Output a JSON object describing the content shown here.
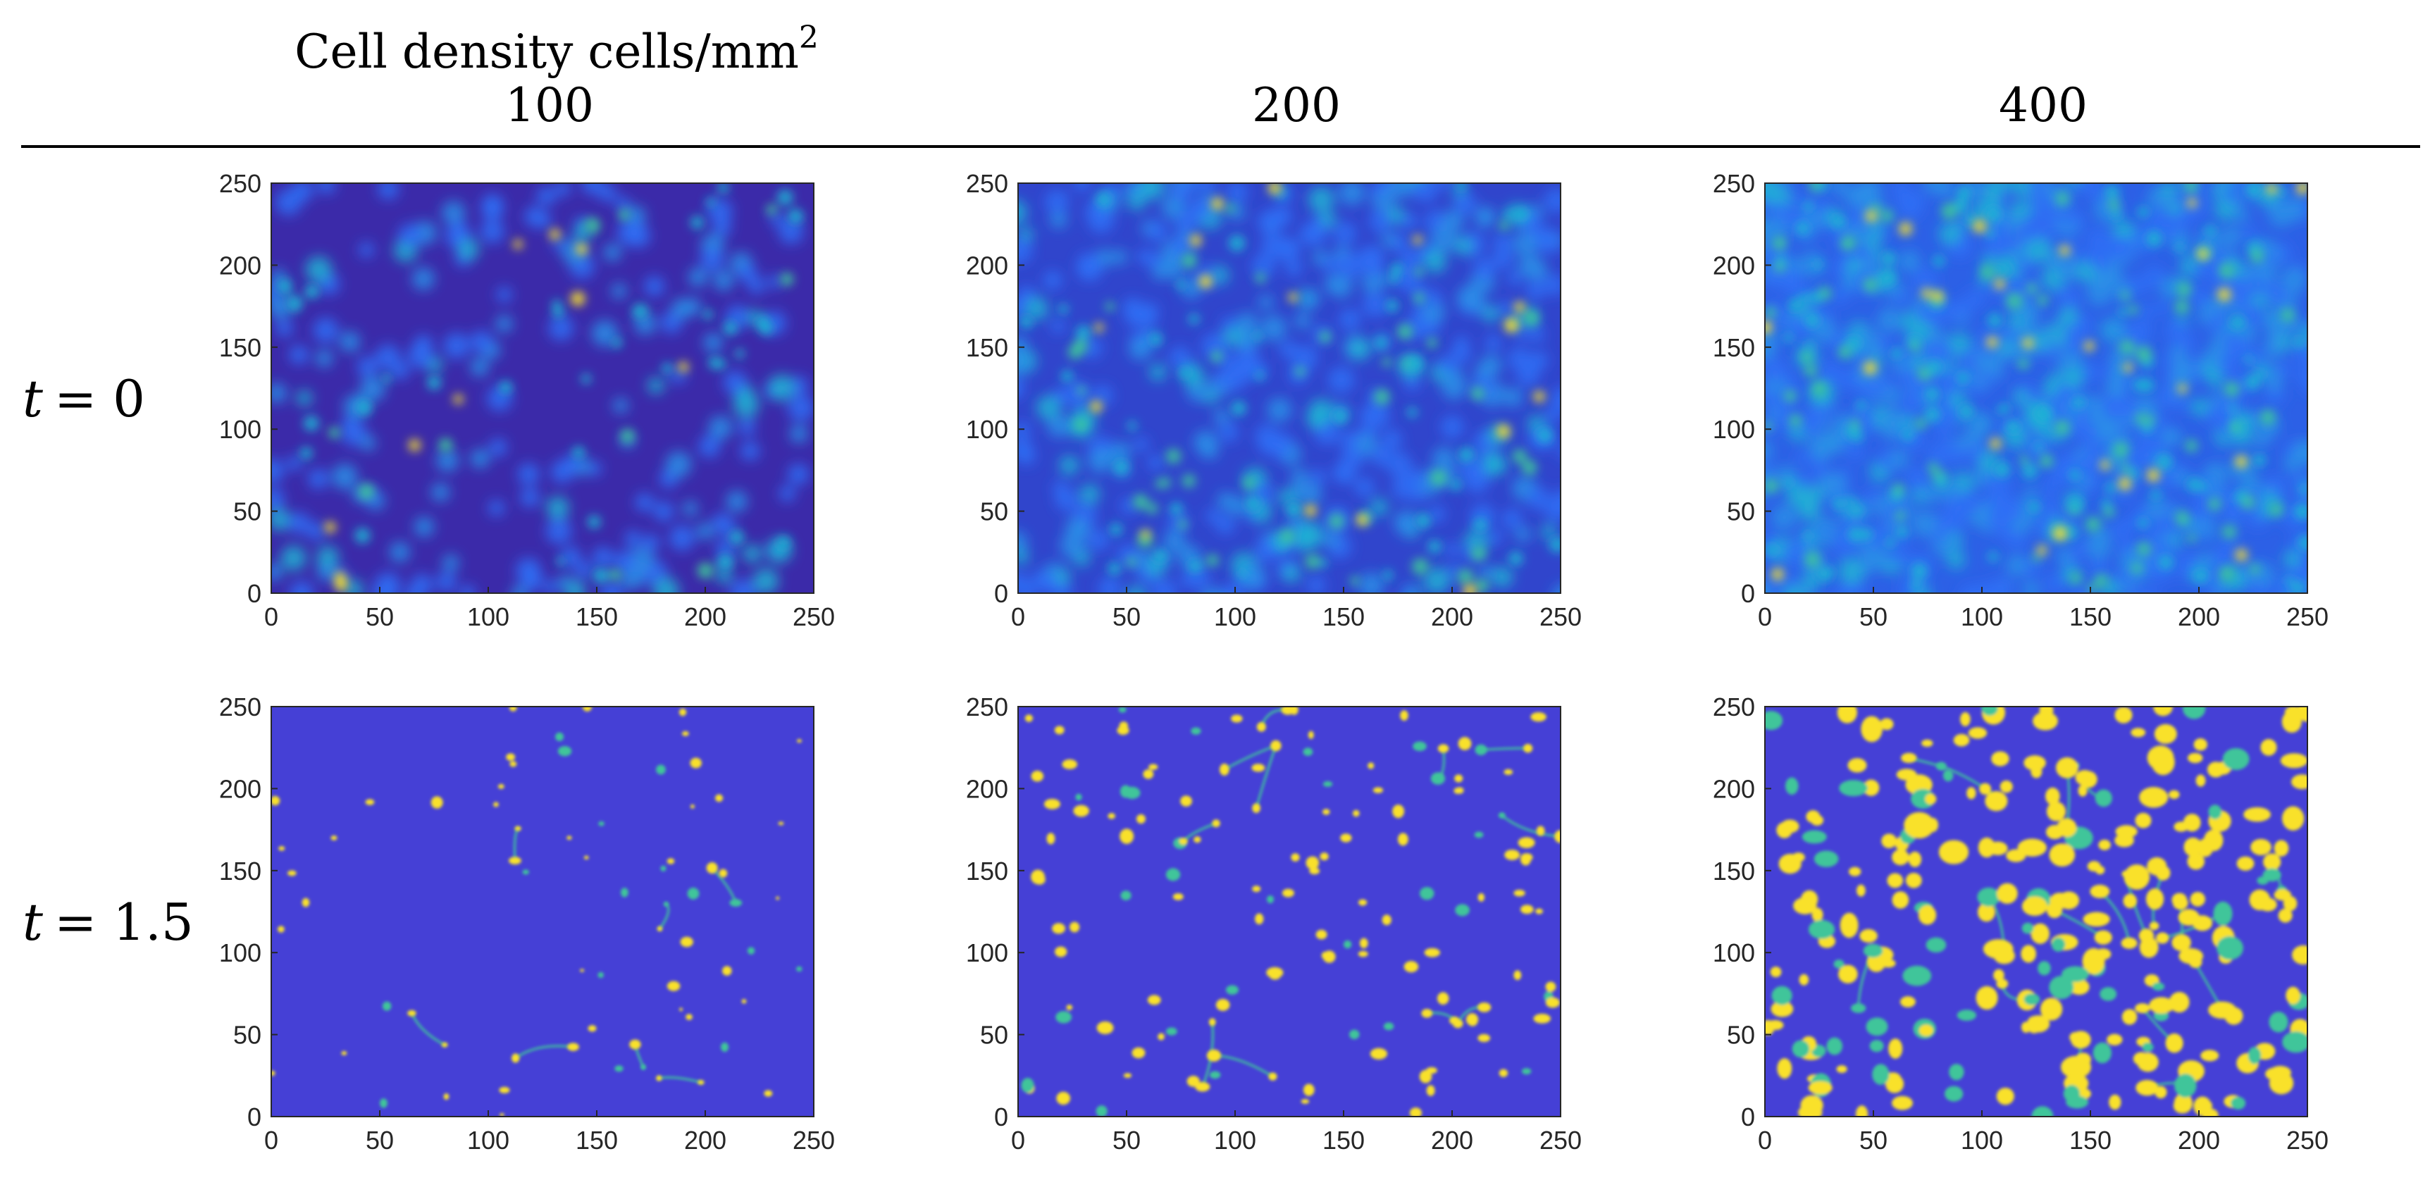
{
  "header": {
    "title": "Cell density cells/mm",
    "title_superscript": "2",
    "columns": [
      "100",
      "200",
      "400"
    ]
  },
  "rows": [
    {
      "label_var": "t",
      "label_eq": "= 0"
    },
    {
      "label_var": "t",
      "label_eq": "= 1.5"
    }
  ],
  "colors": {
    "background_low": "#3e26a8",
    "mid_blue": "#2f6ef6",
    "cyan": "#1fb3d4",
    "green": "#3fc59a",
    "yellow": "#f9e12c",
    "axis": "#262626",
    "rule": "#000000"
  },
  "chart_data": [
    {
      "type": "heatmap",
      "row": "t = 0",
      "column": "100",
      "xlim": [
        0,
        250
      ],
      "ylim": [
        0,
        250
      ],
      "x_ticks": [
        "0",
        "50",
        "100",
        "150",
        "200",
        "250"
      ],
      "y_ticks": [
        "0",
        "50",
        "100",
        "150",
        "200",
        "250"
      ],
      "colormap": "parula"
    },
    {
      "type": "heatmap",
      "row": "t = 0",
      "column": "200",
      "xlim": [
        0,
        250
      ],
      "ylim": [
        0,
        250
      ],
      "x_ticks": [
        "0",
        "50",
        "100",
        "150",
        "200",
        "250"
      ],
      "y_ticks": [
        "0",
        "50",
        "100",
        "150",
        "200",
        "250"
      ],
      "colormap": "parula"
    },
    {
      "type": "heatmap",
      "row": "t = 0",
      "column": "400",
      "xlim": [
        0,
        250
      ],
      "ylim": [
        0,
        250
      ],
      "x_ticks": [
        "0",
        "50",
        "100",
        "150",
        "200",
        "250"
      ],
      "y_ticks": [
        "0",
        "50",
        "100",
        "150",
        "200",
        "250"
      ],
      "colormap": "parula"
    },
    {
      "type": "heatmap",
      "row": "t = 1.5",
      "column": "100",
      "xlim": [
        0,
        250
      ],
      "ylim": [
        0,
        250
      ],
      "x_ticks": [
        "0",
        "50",
        "100",
        "150",
        "200",
        "250"
      ],
      "y_ticks": [
        "0",
        "50",
        "100",
        "150",
        "200",
        "250"
      ],
      "colormap": "parula"
    },
    {
      "type": "heatmap",
      "row": "t = 1.5",
      "column": "200",
      "xlim": [
        0,
        250
      ],
      "ylim": [
        0,
        250
      ],
      "x_ticks": [
        "0",
        "50",
        "100",
        "150",
        "200",
        "250"
      ],
      "y_ticks": [
        "0",
        "50",
        "100",
        "150",
        "200",
        "250"
      ],
      "colormap": "parula"
    },
    {
      "type": "heatmap",
      "row": "t = 1.5",
      "column": "400",
      "xlim": [
        0,
        250
      ],
      "ylim": [
        0,
        250
      ],
      "x_ticks": [
        "0",
        "50",
        "100",
        "150",
        "200",
        "250"
      ],
      "y_ticks": [
        "0",
        "50",
        "100",
        "150",
        "200",
        "250"
      ],
      "colormap": "parula"
    }
  ]
}
